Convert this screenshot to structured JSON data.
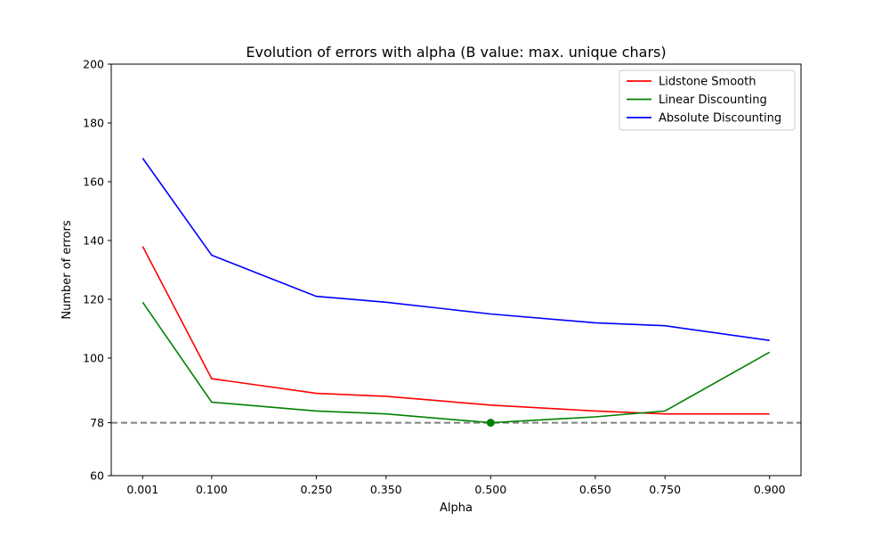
{
  "chart_data": {
    "type": "line",
    "title": "Evolution of errors with alpha (B value: max. unique chars)",
    "xlabel": "Alpha",
    "ylabel": "Number of errors",
    "x": [
      0.001,
      0.1,
      0.25,
      0.35,
      0.5,
      0.65,
      0.75,
      0.9
    ],
    "x_tick_labels": [
      "0.001",
      "0.100",
      "0.250",
      "0.350",
      "0.500",
      "0.650",
      "0.750",
      "0.900"
    ],
    "xlim": [
      -0.044,
      0.945
    ],
    "ylim": [
      60,
      200
    ],
    "y_ticks": [
      60,
      78,
      100,
      120,
      140,
      160,
      180,
      200
    ],
    "series": [
      {
        "name": "Lidstone Smooth",
        "color": "#ff0000",
        "values": [
          138,
          93,
          88,
          87,
          84,
          82,
          81,
          81
        ]
      },
      {
        "name": "Linear Discounting",
        "color": "#008000",
        "values": [
          119,
          85,
          82,
          81,
          78,
          80,
          82,
          102
        ]
      },
      {
        "name": "Absolute Discounting",
        "color": "#0000ff",
        "values": [
          168,
          135,
          121,
          119,
          115,
          112,
          111,
          106
        ]
      }
    ],
    "reference_line": {
      "y": 78,
      "color": "#808080",
      "style": "dashed"
    },
    "highlight_point": {
      "x": 0.5,
      "y": 78,
      "color": "#008000"
    },
    "legend_position": "top-right",
    "grid": false
  }
}
